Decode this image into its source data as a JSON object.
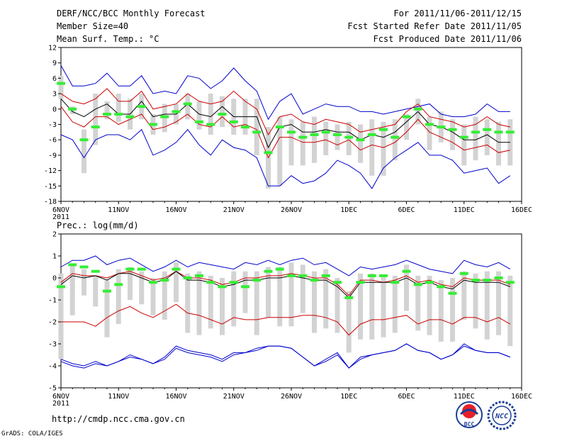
{
  "header": {
    "title": "DERF/NCC/BCC Monthly Forecast",
    "member_size": "Member Size=40",
    "variable": "Mean Surf. Temp.: °C",
    "period": "For 2011/11/06-2011/12/15",
    "started": "Fcst Started Refer Date 2011/11/05",
    "produced": "Fcst Produced Date 2011/11/06"
  },
  "footer": {
    "url": "http://cmdp.ncc.cma.gov.cn",
    "credit": "GrADS: COLA/IGES",
    "logo_bcc": "BCC",
    "logo_ncc": "NCC"
  },
  "colors": {
    "envelope": "#0000cc",
    "spread": "#cc0000",
    "mean": "#000000",
    "bar": "#d3d3d3",
    "median": "#33ee33"
  },
  "chart_data": [
    {
      "type": "line",
      "title": "Mean Surf. Temp.: °C",
      "xlabels": [
        "6NOV",
        "11NOV",
        "16NOV",
        "21NOV",
        "26NOV",
        "1DEC",
        "6DEC",
        "11DEC",
        "16DEC"
      ],
      "xlabel_year": "2011",
      "xlim": [
        1,
        41
      ],
      "ylim": [
        -18,
        12
      ],
      "yticks": [
        -18,
        -15,
        -12,
        -9,
        -6,
        -3,
        0,
        3,
        6,
        9,
        12
      ],
      "x": [
        1,
        2,
        3,
        4,
        5,
        6,
        7,
        8,
        9,
        10,
        11,
        12,
        13,
        14,
        15,
        16,
        17,
        18,
        19,
        20,
        21,
        22,
        23,
        24,
        25,
        26,
        27,
        28,
        29,
        30,
        31,
        32,
        33,
        34,
        35,
        36,
        37,
        38,
        39,
        40
      ],
      "series": [
        {
          "name": "max",
          "values": [
            8.5,
            4.5,
            4.5,
            5,
            7,
            4.5,
            4.5,
            6.5,
            3,
            3.5,
            3,
            6.5,
            6,
            4,
            5.5,
            8,
            5.5,
            3.5,
            -2,
            1.5,
            3,
            -1,
            0,
            1,
            0.5,
            0.5,
            -0.5,
            -0.5,
            -1,
            -0.5,
            0,
            0.5,
            1,
            -1,
            -1.5,
            -1.5,
            -1,
            1,
            -0.5,
            -0.5
          ]
        },
        {
          "name": "upper",
          "values": [
            3,
            1.5,
            1,
            2,
            4,
            1.5,
            1.5,
            3.5,
            0,
            0.5,
            1,
            3,
            1.5,
            1,
            1.5,
            3.5,
            1.5,
            0,
            -5,
            -1.5,
            -1,
            -2.5,
            -3,
            -2,
            -2.5,
            -3,
            -4.5,
            -4,
            -3.5,
            -3,
            -0.5,
            1,
            -1.5,
            -2,
            -2.5,
            -3.5,
            -3,
            -1.5,
            -3,
            -3.5
          ]
        },
        {
          "name": "mean",
          "values": [
            2,
            -0.5,
            -1.5,
            0,
            1,
            -1,
            -1,
            1.5,
            -1.5,
            -1,
            -1,
            1,
            -1,
            -1.5,
            0.5,
            -1.5,
            -1.5,
            -1.5,
            -7.5,
            -3.5,
            -3,
            -4.5,
            -4.5,
            -4,
            -4.5,
            -4.5,
            -6,
            -5,
            -5.5,
            -4.5,
            -2.5,
            -0.5,
            -3,
            -3.5,
            -4.5,
            -6,
            -6,
            -5,
            -6.5,
            -6.5
          ]
        },
        {
          "name": "lower",
          "values": [
            0.5,
            -2.5,
            -3.5,
            -1.5,
            -1.5,
            -3,
            -2,
            -1,
            -4,
            -3.5,
            -2.5,
            -1,
            -3,
            -3.5,
            -1.5,
            -3.5,
            -3,
            -4,
            -9.5,
            -5.5,
            -5.5,
            -6.5,
            -6.5,
            -6,
            -7,
            -6,
            -8,
            -7,
            -7.5,
            -6.5,
            -4.5,
            -2,
            -4.5,
            -5.5,
            -6.5,
            -8,
            -7.5,
            -7,
            -8.5,
            -8
          ]
        },
        {
          "name": "min",
          "values": [
            -5,
            -6,
            -9.5,
            -6,
            -5,
            -5,
            -6,
            -4,
            -9,
            -8,
            -6.5,
            -4,
            -7,
            -9,
            -6,
            -7.5,
            -8,
            -9.5,
            -15,
            -15,
            -13,
            -14.5,
            -14,
            -12.5,
            -10,
            -11,
            -12.5,
            -15.5,
            -11.5,
            -9.5,
            -8,
            -6.5,
            -9,
            -9,
            -10,
            -12.5,
            -12,
            -11.5,
            -14.5,
            -13
          ]
        }
      ],
      "bars": {
        "low": [
          2,
          -1,
          -12.5,
          -7,
          -2,
          -2.5,
          -4,
          -2,
          -5,
          -4.5,
          -3,
          -2,
          -4,
          -5,
          -3.5,
          -5,
          -5,
          -9,
          -15.5,
          -15,
          -11,
          -11,
          -10.5,
          -9,
          -8,
          -9,
          -10.5,
          -13,
          -13,
          -10,
          -6,
          -3,
          -8,
          -6.5,
          -8,
          -11,
          -10,
          -9,
          -11,
          -11
        ],
        "high": [
          6.5,
          0.5,
          -4,
          3,
          1.5,
          3,
          2,
          3,
          -1,
          1,
          1,
          3,
          1.5,
          3,
          2.5,
          2,
          2,
          2,
          -3.5,
          -1.5,
          -2,
          -2.5,
          -1.5,
          -2.5,
          -3,
          -2.5,
          -3,
          -2,
          -2.5,
          -2,
          -1,
          2,
          -1.5,
          -0.5,
          -2,
          -3,
          -1.5,
          -2,
          -2.5,
          -2
        ],
        "median": [
          5,
          0,
          -6,
          -3.5,
          -1,
          -1,
          -1.5,
          0.5,
          -3,
          -1.5,
          -0.5,
          1,
          -2.5,
          -3,
          -1,
          -2.5,
          -3.5,
          -4.5,
          -8.5,
          -3.5,
          -4.5,
          -5.5,
          -5,
          -4.5,
          -5,
          -5.5,
          -6,
          -5,
          -4,
          -5.5,
          -1.5,
          0,
          -3,
          -3.5,
          -4,
          -5.5,
          -4.5,
          -4,
          -4.5,
          -4.5
        ]
      }
    },
    {
      "type": "line",
      "title": "Prec.: log(mm/d)",
      "xlabels": [
        "6NOV",
        "11NOV",
        "16NOV",
        "21NOV",
        "26NOV",
        "1DEC",
        "6DEC",
        "11DEC",
        "16DEC"
      ],
      "xlabel_year": "2011",
      "xlim": [
        1,
        41
      ],
      "ylim": [
        -5,
        2
      ],
      "yticks": [
        -5,
        -4,
        -3,
        -2,
        -1,
        0,
        1,
        2
      ],
      "x": [
        1,
        2,
        3,
        4,
        5,
        6,
        7,
        8,
        9,
        10,
        11,
        12,
        13,
        14,
        15,
        16,
        17,
        18,
        19,
        20,
        21,
        22,
        23,
        24,
        25,
        26,
        27,
        28,
        29,
        30,
        31,
        32,
        33,
        34,
        35,
        36,
        37,
        38,
        39,
        40
      ],
      "series": [
        {
          "name": "max",
          "values": [
            0.5,
            0.8,
            0.8,
            1,
            0.6,
            0.8,
            0.9,
            0.6,
            0.3,
            0.5,
            0.8,
            0.5,
            0.7,
            0.6,
            0.5,
            0.4,
            0.7,
            0.6,
            0.8,
            0.6,
            0.8,
            0.9,
            0.6,
            0.7,
            0.4,
            0.1,
            0.5,
            0.4,
            0.5,
            0.6,
            0.8,
            0.6,
            0.4,
            0.3,
            0.2,
            0.8,
            0.6,
            0.5,
            0.7,
            0.4
          ]
        },
        {
          "name": "upper",
          "values": [
            -0.2,
            0.2,
            0.1,
            0.1,
            0,
            0.2,
            0.3,
            0.1,
            -0.1,
            0,
            0.3,
            0,
            0,
            -0.1,
            -0.3,
            -0.2,
            0,
            0,
            0.1,
            0.1,
            0.2,
            0.1,
            0,
            0,
            -0.3,
            -0.8,
            -0.1,
            -0.1,
            -0.2,
            -0.1,
            0.1,
            -0.2,
            -0.1,
            -0.3,
            -0.4,
            0,
            -0.1,
            -0.1,
            -0.1,
            -0.3
          ]
        },
        {
          "name": "mean",
          "values": [
            -0.3,
            0.1,
            0,
            0.1,
            -0.1,
            0.2,
            0.2,
            0,
            -0.2,
            -0.1,
            0.3,
            -0.1,
            -0.1,
            -0.2,
            -0.4,
            -0.3,
            -0.1,
            -0.1,
            0,
            0,
            0.1,
            0,
            -0.1,
            -0.1,
            -0.4,
            -0.9,
            -0.2,
            -0.2,
            -0.2,
            -0.2,
            0,
            -0.3,
            -0.2,
            -0.4,
            -0.5,
            -0.1,
            -0.2,
            -0.2,
            -0.2,
            -0.4
          ]
        },
        {
          "name": "lower",
          "values": [
            -2,
            -2,
            -2,
            -2.2,
            -1.8,
            -1.5,
            -1.3,
            -1.6,
            -1.8,
            -1.5,
            -1.2,
            -1.6,
            -1.7,
            -1.9,
            -2.1,
            -1.8,
            -1.9,
            -1.9,
            -1.8,
            -1.8,
            -1.8,
            -1.7,
            -1.7,
            -1.8,
            -2,
            -2.6,
            -2.1,
            -1.9,
            -1.9,
            -1.8,
            -1.7,
            -2.1,
            -1.9,
            -1.9,
            -2.1,
            -1.8,
            -1.8,
            -2,
            -1.8,
            -2.1
          ]
        },
        {
          "name": "min",
          "values": [
            -3.7,
            -3.9,
            -4,
            -3.8,
            -4,
            -3.8,
            -3.5,
            -3.7,
            -3.9,
            -3.6,
            -3.1,
            -3.3,
            -3.4,
            -3.5,
            -3.7,
            -3.4,
            -3.4,
            -3.2,
            -3.1,
            -3.1,
            -3.2,
            -3.6,
            -4,
            -3.7,
            -3.4,
            -4.1,
            -3.6,
            -3.5,
            -3.4,
            -3.3,
            -3,
            -3.3,
            -3.4,
            -3.7,
            -3.5,
            -3,
            -3.3,
            -3.4,
            -3.4,
            -3.6
          ]
        },
        {
          "name": "extra",
          "values": [
            -3.8,
            -4,
            -4.1,
            -3.9,
            -4,
            -3.8,
            -3.6,
            -3.7,
            -3.9,
            -3.7,
            -3.2,
            -3.4,
            -3.5,
            -3.6,
            -3.8,
            -3.5,
            -3.4,
            -3.3,
            -3.1,
            -3.1,
            -3.2,
            -3.6,
            -4,
            -3.8,
            -3.5,
            -4.1,
            -3.7,
            -3.5,
            -3.4,
            -3.3,
            -3,
            -3.3,
            -3.4,
            -3.7,
            -3.5,
            -3.1,
            -3.3,
            -3.4,
            -3.4,
            -3.6
          ]
        }
      ],
      "bars": {
        "low": [
          -3.7,
          -1.7,
          -0.8,
          -1.3,
          -2.7,
          -2.1,
          -1,
          -1.2,
          -1.7,
          -1.9,
          -1.1,
          -2.5,
          -2.6,
          -2.3,
          -2.6,
          -2.2,
          -1.6,
          -2.6,
          -1.8,
          -2.2,
          -2.2,
          -1.6,
          -2.5,
          -2.3,
          -2.5,
          -3.4,
          -2.8,
          -2.8,
          -2.7,
          -2.5,
          -1.5,
          -2.4,
          -2.6,
          -2.9,
          -2.9,
          -1.9,
          -2.3,
          -2.8,
          -2.6,
          -3.1
        ],
        "high": [
          0.2,
          0.6,
          0.4,
          0.1,
          -0.1,
          0.4,
          0.5,
          0.3,
          0,
          0.3,
          0.7,
          0.2,
          0.3,
          0.1,
          0,
          0.3,
          0.3,
          0.3,
          0.5,
          0.5,
          0.7,
          0.6,
          0.3,
          0.4,
          0,
          -0.6,
          0.2,
          0.2,
          0.1,
          0.1,
          0.6,
          0.1,
          0.1,
          -0.1,
          0,
          0.3,
          0.2,
          0.3,
          0.3,
          0.1
        ],
        "median": [
          -0.4,
          0.6,
          0.5,
          0.3,
          -0.6,
          -0.3,
          0.4,
          0.4,
          -0.2,
          -0.1,
          0.4,
          0,
          0.1,
          -0.2,
          -0.4,
          -0.2,
          -0.4,
          -0.1,
          0.3,
          0.4,
          0.1,
          0.1,
          -0.1,
          0.1,
          -0.2,
          -0.9,
          -0.2,
          0.1,
          0.1,
          -0.2,
          0.3,
          -0.3,
          -0.2,
          -0.4,
          -0.7,
          0.2,
          -0.1,
          -0.1,
          0,
          -0.2
        ]
      }
    }
  ]
}
